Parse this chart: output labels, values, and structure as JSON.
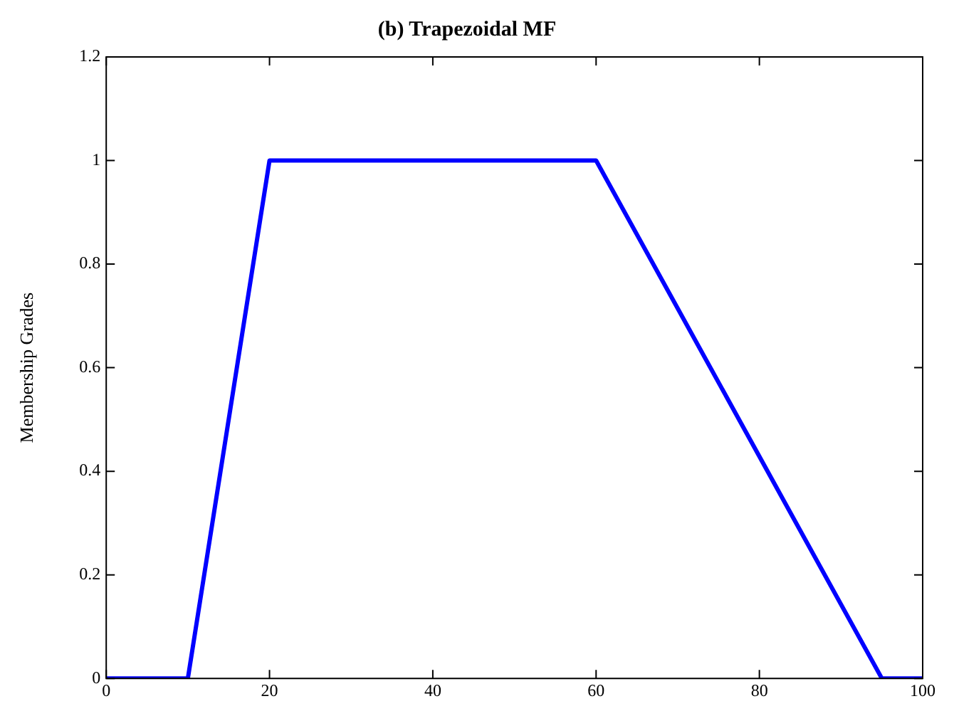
{
  "chart_data": {
    "type": "line",
    "title": "(b) Trapezoidal MF",
    "ylabel": "Membership Grades",
    "x": [
      0,
      10,
      20,
      60,
      95,
      100
    ],
    "series": [
      {
        "color": "#0000ff",
        "values": [
          0,
          0,
          1,
          1,
          0,
          0
        ]
      }
    ],
    "xlim": [
      0,
      100
    ],
    "xticks": [
      0,
      20,
      40,
      60,
      80,
      100
    ],
    "ylim": [
      0,
      1.2
    ],
    "yticks": [
      0,
      0.2,
      0.4,
      0.6,
      0.8,
      1,
      1.2
    ],
    "grid": false,
    "legend": false,
    "marker": "none",
    "line_style": "solid"
  }
}
